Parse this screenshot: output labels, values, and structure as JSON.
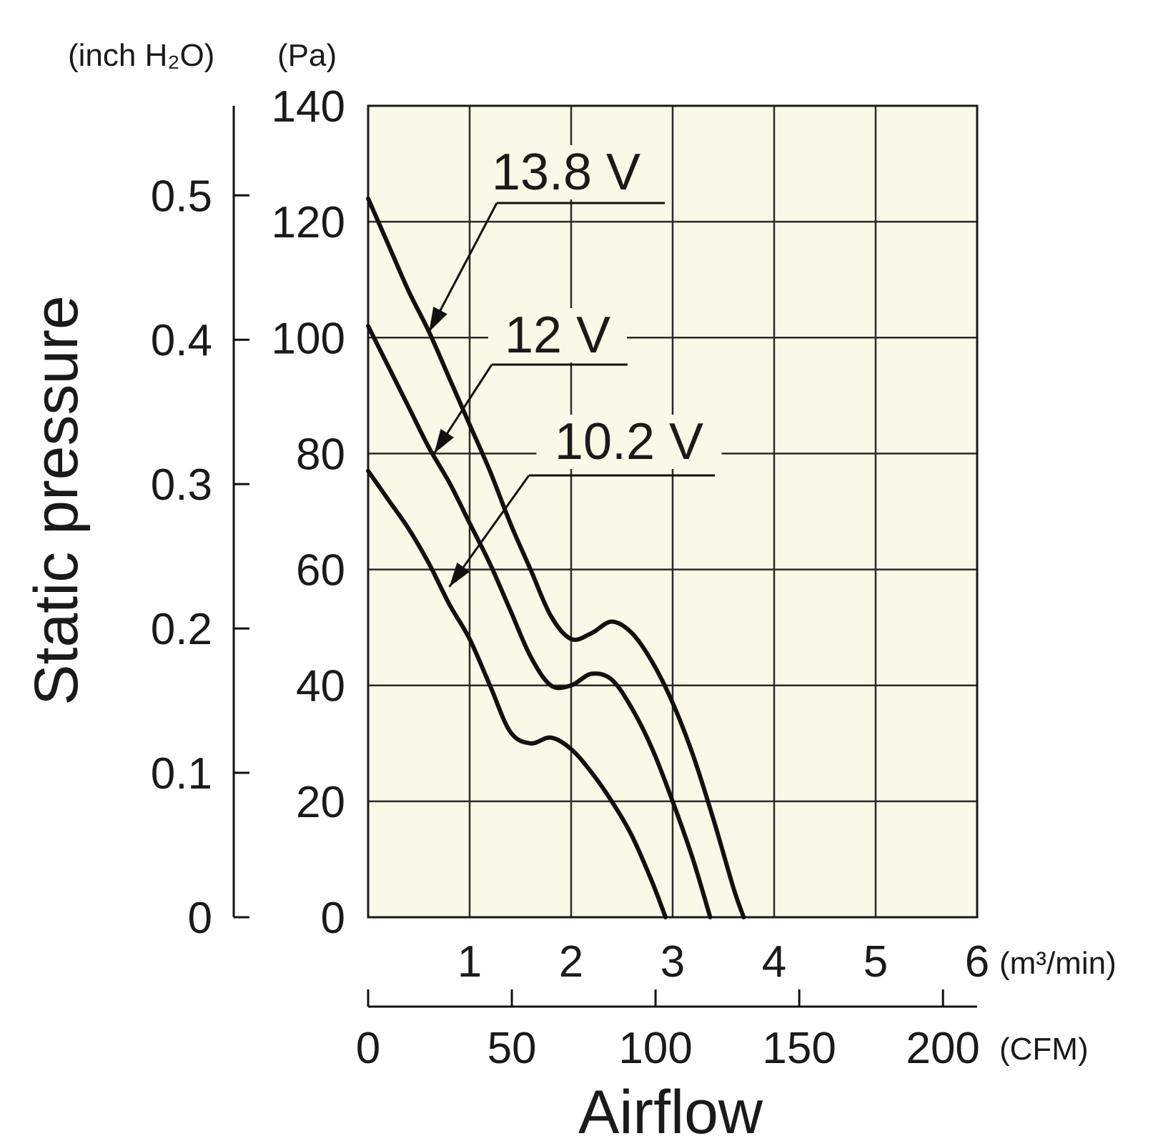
{
  "chart_data": {
    "type": "line",
    "title": "",
    "xlabel": "Airflow",
    "ylabel": "Static pressure",
    "x_unit_primary": "(m³/min)",
    "x_unit_secondary": "(CFM)",
    "y_unit_primary": "(Pa)",
    "y_unit_secondary": "(inch H₂O)",
    "xlim": [
      0,
      6
    ],
    "ylim": [
      0,
      140
    ],
    "x_ticks": [
      "1",
      "2",
      "3",
      "4",
      "5",
      "6"
    ],
    "x_ticks_secondary": [
      "0",
      "50",
      "100",
      "150",
      "200"
    ],
    "x_ticks_secondary_values": [
      0,
      50,
      100,
      150,
      200
    ],
    "y_ticks": [
      "0",
      "20",
      "40",
      "60",
      "80",
      "100",
      "120",
      "140"
    ],
    "y_ticks_secondary": [
      "0",
      "0.1",
      "0.2",
      "0.3",
      "0.4",
      "0.5"
    ],
    "y_ticks_secondary_values": [
      0,
      0.1,
      0.2,
      0.3,
      0.4,
      0.5
    ],
    "grid": true,
    "background_color": "#faf8e6",
    "line_color": "#111111",
    "series": [
      {
        "name": "13.8 V",
        "x": [
          0,
          0.2,
          0.4,
          0.6,
          0.8,
          1.0,
          1.2,
          1.4,
          1.6,
          1.8,
          2.0,
          2.2,
          2.4,
          2.6,
          2.8,
          3.0,
          3.2,
          3.4,
          3.6,
          3.7
        ],
        "y": [
          124,
          116,
          108,
          101,
          93,
          85,
          77,
          68,
          60,
          52,
          48,
          49,
          51,
          49,
          44,
          37,
          28,
          17,
          5,
          0
        ]
      },
      {
        "name": "12 V",
        "x": [
          0,
          0.2,
          0.4,
          0.6,
          0.8,
          1.0,
          1.2,
          1.4,
          1.6,
          1.8,
          2.0,
          2.2,
          2.4,
          2.6,
          2.8,
          3.0,
          3.2,
          3.37
        ],
        "y": [
          102,
          95,
          88,
          81,
          75,
          68,
          61,
          53,
          45,
          40,
          40,
          42,
          41,
          36,
          29,
          20,
          10,
          0
        ]
      },
      {
        "name": "10.2 V",
        "x": [
          0,
          0.2,
          0.4,
          0.6,
          0.8,
          1.0,
          1.2,
          1.4,
          1.6,
          1.8,
          2.0,
          2.2,
          2.4,
          2.6,
          2.8,
          2.93
        ],
        "y": [
          77,
          72,
          67,
          61,
          54,
          48,
          40,
          32,
          30,
          31,
          29,
          25,
          20,
          14,
          6,
          0
        ]
      }
    ],
    "annotations": [
      {
        "series": "13.8 V",
        "label": "13.8 V",
        "arrow_to": {
          "x": 0.6,
          "y": 101
        }
      },
      {
        "series": "12 V",
        "label": "12 V",
        "arrow_to": {
          "x": 0.65,
          "y": 80
        }
      },
      {
        "series": "10.2 V",
        "label": "10.2 V",
        "arrow_to": {
          "x": 0.8,
          "y": 57
        }
      }
    ]
  }
}
